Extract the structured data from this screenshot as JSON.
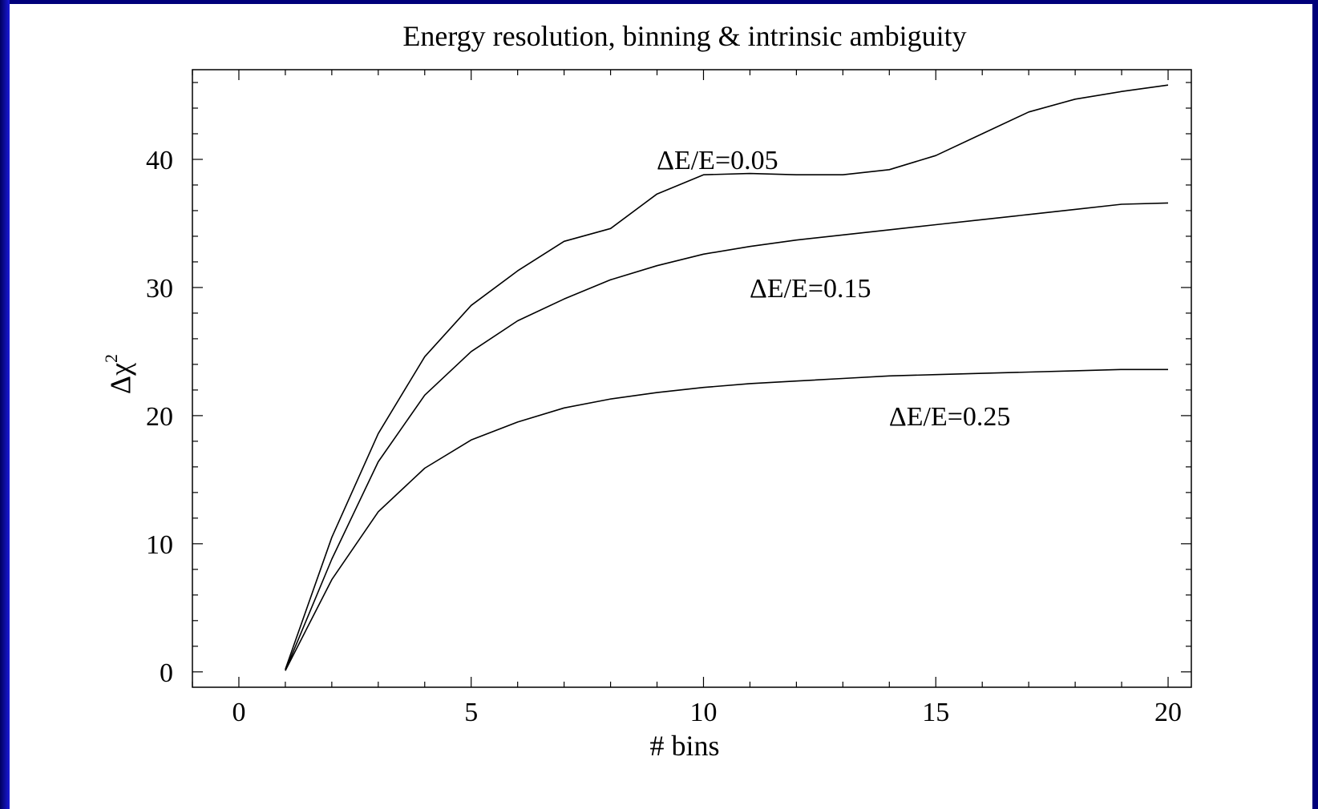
{
  "chart_data": {
    "type": "line",
    "title": "Energy resolution, binning & intrinsic ambiguity",
    "xlabel": "# bins",
    "ylabel_base": "Δχ",
    "ylabel_sup": "2",
    "xlim": [
      -1,
      20.5
    ],
    "ylim": [
      -1.2,
      47
    ],
    "xticks": [
      0,
      5,
      10,
      15,
      20
    ],
    "yticks": [
      0,
      10,
      20,
      30,
      40
    ],
    "xminor_step": 1,
    "yminor_step": 2,
    "grid": false,
    "legend": "none",
    "line_color": "#000000",
    "x": [
      1,
      2,
      3,
      4,
      5,
      6,
      7,
      8,
      9,
      10,
      11,
      12,
      13,
      14,
      15,
      16,
      17,
      18,
      19,
      20
    ],
    "series": [
      {
        "name": "ΔE/E=0.05",
        "values": [
          0.2,
          10.5,
          18.6,
          24.6,
          28.6,
          31.3,
          33.6,
          34.6,
          37.3,
          38.8,
          38.9,
          38.8,
          38.8,
          39.2,
          40.3,
          42.0,
          43.7,
          44.7,
          45.3,
          45.8
        ],
        "label_anchor": [
          10.3,
          40.0
        ]
      },
      {
        "name": "ΔE/E=0.15",
        "values": [
          0.1,
          8.8,
          16.4,
          21.6,
          25.0,
          27.4,
          29.1,
          30.6,
          31.7,
          32.6,
          33.2,
          33.7,
          34.1,
          34.5,
          34.9,
          35.3,
          35.7,
          36.1,
          36.5,
          36.6
        ],
        "label_anchor": [
          12.3,
          30.0
        ]
      },
      {
        "name": "ΔE/E=0.25",
        "values": [
          0.1,
          7.2,
          12.5,
          15.9,
          18.1,
          19.5,
          20.6,
          21.3,
          21.8,
          22.2,
          22.5,
          22.7,
          22.9,
          23.1,
          23.2,
          23.3,
          23.4,
          23.5,
          23.6,
          23.6
        ],
        "label_anchor": [
          15.3,
          20.0
        ]
      }
    ]
  }
}
